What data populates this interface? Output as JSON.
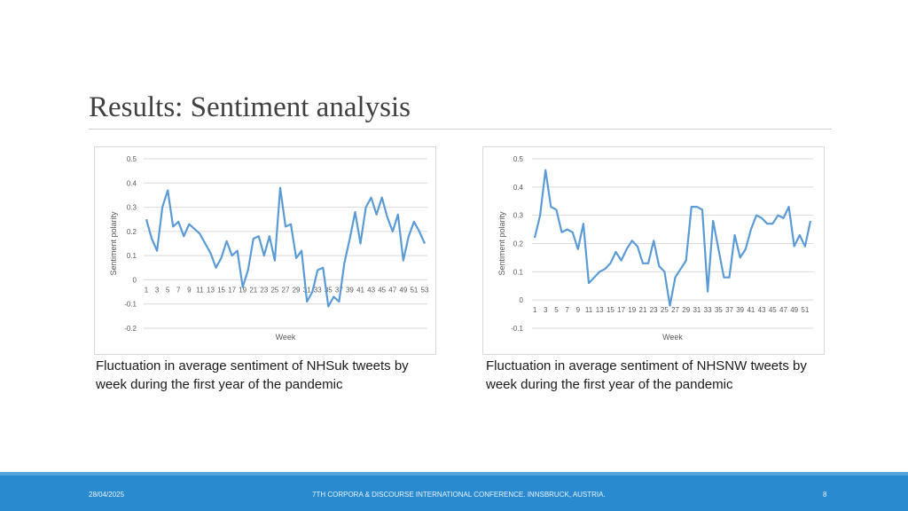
{
  "slide": {
    "title": "Results: Sentiment analysis"
  },
  "captions": {
    "left": "Fluctuation in average sentiment of NHSuk tweets by week during the first year of the pandemic",
    "right": "Fluctuation in average sentiment of NHSNW tweets by week during the first year of the pandemic"
  },
  "footer": {
    "date": "28/04/2025",
    "conference": "7TH CORPORA & DISCOURSE INTERNATIONAL CONFERENCE. INNSBRUCK, AUSTRIA.",
    "page_number": "8"
  },
  "colors": {
    "line": "#5b9bd5",
    "grid": "#d9d9d9",
    "footer": "#2a8ad0"
  },
  "chart_data": [
    {
      "type": "line",
      "xlabel": "Week",
      "ylabel": "Sentiment polarity",
      "ylim": [
        -0.2,
        0.5
      ],
      "yticks": [
        0.5,
        0.4,
        0.3,
        0.2,
        0.1,
        0,
        -0.1,
        -0.2
      ],
      "ytick_labels": [
        "0.5",
        "0.4",
        "0.3",
        "0.2",
        "0.1",
        "0",
        "-0.1",
        "-0.2"
      ],
      "x_tick_labels": [
        "1",
        "3",
        "5",
        "7",
        "9",
        "11",
        "13",
        "15",
        "17",
        "19",
        "21",
        "23",
        "25",
        "27",
        "29",
        "31",
        "33",
        "35",
        "37",
        "39",
        "41",
        "43",
        "45",
        "47",
        "49",
        "51",
        "53"
      ],
      "x": [
        1,
        2,
        3,
        4,
        5,
        6,
        7,
        8,
        9,
        10,
        11,
        12,
        13,
        14,
        15,
        16,
        17,
        18,
        19,
        20,
        21,
        22,
        23,
        24,
        25,
        26,
        27,
        28,
        29,
        30,
        31,
        32,
        33,
        34,
        35,
        36,
        37,
        38,
        39,
        40,
        41,
        42,
        43,
        44,
        45,
        46,
        47,
        48,
        49,
        50,
        51,
        52,
        53
      ],
      "series": [
        {
          "values": [
            0.25,
            0.17,
            0.12,
            0.3,
            0.37,
            0.22,
            0.24,
            0.18,
            0.23,
            0.21,
            0.19,
            0.15,
            0.11,
            0.05,
            0.09,
            0.16,
            0.1,
            0.12,
            -0.03,
            0.04,
            0.17,
            0.18,
            0.1,
            0.18,
            0.08,
            0.38,
            0.22,
            0.23,
            0.09,
            0.12,
            -0.09,
            -0.05,
            0.04,
            0.05,
            -0.11,
            -0.07,
            -0.09,
            0.07,
            0.17,
            0.28,
            0.15,
            0.3,
            0.34,
            0.27,
            0.34,
            0.26,
            0.2,
            0.27,
            0.08,
            0.18,
            0.24,
            0.2,
            0.15
          ]
        }
      ]
    },
    {
      "type": "line",
      "xlabel": "Week",
      "ylabel": "Sentiment polarity",
      "ylim": [
        -0.1,
        0.5
      ],
      "yticks": [
        0.5,
        0.4,
        0.3,
        0.2,
        0.1,
        0,
        -0.1
      ],
      "ytick_labels": [
        "0.5",
        "0.4",
        "0.3",
        "0.2",
        "0.1",
        "0",
        "-0.1"
      ],
      "x_tick_labels": [
        "1",
        "3",
        "5",
        "7",
        "9",
        "11",
        "13",
        "15",
        "17",
        "19",
        "21",
        "23",
        "25",
        "27",
        "29",
        "31",
        "33",
        "35",
        "37",
        "39",
        "41",
        "43",
        "45",
        "47",
        "49",
        "51"
      ],
      "x": [
        1,
        2,
        3,
        4,
        5,
        6,
        7,
        8,
        9,
        10,
        11,
        12,
        13,
        14,
        15,
        16,
        17,
        18,
        19,
        20,
        21,
        22,
        23,
        24,
        25,
        26,
        27,
        28,
        29,
        30,
        31,
        32,
        33,
        34,
        35,
        36,
        37,
        38,
        39,
        40,
        41,
        42,
        43,
        44,
        45,
        46,
        47,
        48,
        49,
        50,
        51,
        52
      ],
      "series": [
        {
          "values": [
            0.22,
            0.3,
            0.46,
            0.33,
            0.32,
            0.24,
            0.25,
            0.24,
            0.18,
            0.27,
            0.06,
            0.08,
            0.1,
            0.11,
            0.13,
            0.17,
            0.14,
            0.18,
            0.21,
            0.19,
            0.13,
            0.13,
            0.21,
            0.12,
            0.1,
            -0.02,
            0.08,
            0.11,
            0.14,
            0.33,
            0.33,
            0.32,
            0.03,
            0.28,
            0.18,
            0.08,
            0.08,
            0.23,
            0.15,
            0.18,
            0.25,
            0.3,
            0.29,
            0.27,
            0.27,
            0.3,
            0.29,
            0.33,
            0.19,
            0.23,
            0.19,
            0.28
          ]
        }
      ]
    }
  ]
}
